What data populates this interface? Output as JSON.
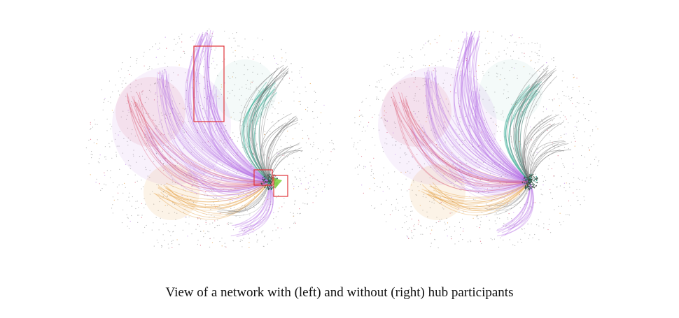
{
  "caption": "View of a network with (left) and without (right) hub participants",
  "panels": [
    {
      "id": "left",
      "shows_hubs": true,
      "highlight_boxes": 3
    },
    {
      "id": "right",
      "shows_hubs": false,
      "highlight_boxes": 0
    }
  ],
  "colors": {
    "purple": "#b774e6",
    "teal": "#3fae97",
    "gray": "#6f6f6f",
    "red": "#d9506a",
    "orange": "#e39a3a",
    "green": "#7fd13b",
    "box": "#e0343a"
  }
}
